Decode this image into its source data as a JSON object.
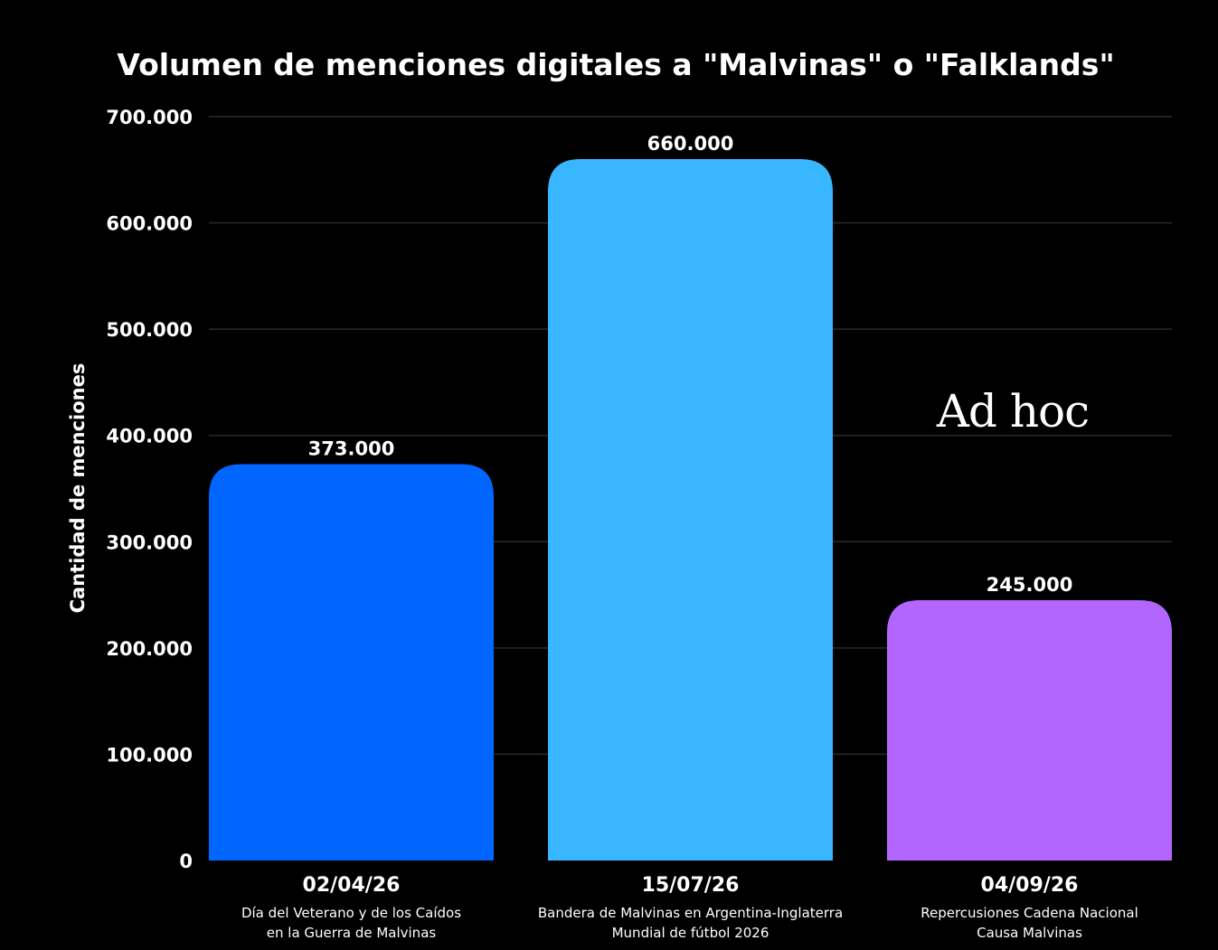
{
  "chart_data": {
    "type": "bar",
    "title": "Volumen de menciones digitales a \"Malvinas\" o \"Falklands\"",
    "ylabel": "Cantidad de menciones",
    "xlabel": "",
    "ylim": [
      0,
      700000
    ],
    "yticks": [
      0,
      100000,
      200000,
      300000,
      400000,
      500000,
      600000,
      700000
    ],
    "ytick_labels": [
      "0",
      "100.000",
      "200.000",
      "300.000",
      "400.000",
      "500.000",
      "600.000",
      "700.000"
    ],
    "grid": true,
    "categories": [
      "02/04/26",
      "15/07/26",
      "04/09/26"
    ],
    "descriptions": [
      [
        "Día del Veterano y de los Caídos",
        "en la Guerra de Malvinas"
      ],
      [
        "Bandera de Malvinas en Argentina-Inglaterra",
        "Mundial de fútbol 2026"
      ],
      [
        "Repercusiones Cadena Nacional",
        "Causa Malvinas"
      ]
    ],
    "values": [
      373000,
      660000,
      245000
    ],
    "value_labels": [
      "373.000",
      "660.000",
      "245.000"
    ],
    "colors": [
      "#0066ff",
      "#38b6ff",
      "#b266ff"
    ]
  },
  "watermark": "Ad hoc",
  "colors": {
    "background": "#000000",
    "text": "#ffffff",
    "grid": "#2a2a2a"
  }
}
